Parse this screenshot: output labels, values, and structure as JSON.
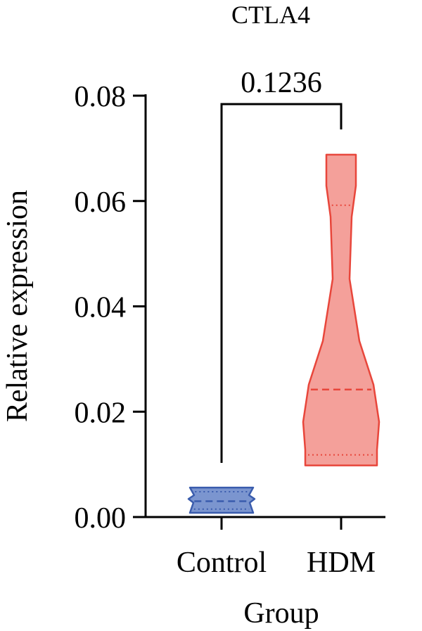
{
  "chart_data": {
    "type": "violin",
    "title": "CTLA4",
    "xlabel": "Group",
    "ylabel": "Relative expression",
    "ylim": [
      0,
      0.08
    ],
    "yticks": [
      "0.00",
      "0.02",
      "0.04",
      "0.06",
      "0.08"
    ],
    "categories": [
      "Control",
      "HDM"
    ],
    "groups": [
      {
        "name": "Control",
        "color": "#7b95cf",
        "stroke": "#3a5cad",
        "min": 0.0008,
        "max": 0.0056,
        "median": 0.003,
        "q1": 0.0015,
        "q3": 0.0048
      },
      {
        "name": "HDM",
        "color": "#f4a09a",
        "stroke": "#e8463b",
        "min": 0.0098,
        "max": 0.0688,
        "median": 0.0242,
        "q1": 0.0118,
        "q3": 0.0592
      }
    ],
    "significance": {
      "label": "0.1236",
      "between": [
        "Control",
        "HDM"
      ]
    },
    "grid": false
  }
}
